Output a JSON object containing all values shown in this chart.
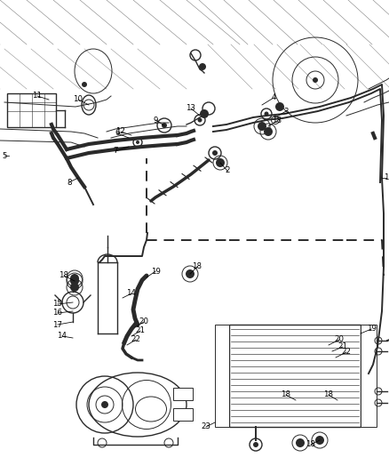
{
  "bg_color": "#ffffff",
  "line_color": "#2a2a2a",
  "lw_main": 1.4,
  "lw_thin": 0.7,
  "lw_med": 1.0,
  "fig_width": 4.38,
  "fig_height": 5.33,
  "dpi": 100
}
